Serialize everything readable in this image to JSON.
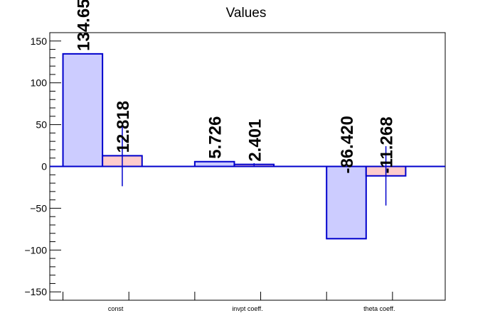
{
  "chart_data": {
    "type": "bar",
    "title": "Values",
    "xlabel": "",
    "ylabel": "",
    "categories": [
      "const",
      "invpt coeff.",
      "theta coeff."
    ],
    "ylim": [
      -160,
      160
    ],
    "yticks": [
      -150,
      -100,
      -50,
      0,
      50,
      100,
      150
    ],
    "ytick_labels": [
      "−150",
      "−100",
      "−50",
      "0",
      "50",
      "100",
      "150"
    ],
    "grid": false,
    "legend": "none",
    "series": [
      {
        "values": [
          134.65,
          5.726,
          -86.42
        ],
        "labels": [
          "134.65",
          "5.726",
          "-86.420"
        ],
        "fill": "#ccccff",
        "stroke": "#0000cc"
      },
      {
        "values": [
          12.818,
          2.401,
          -11.268
        ],
        "labels": [
          "12.818",
          "2.401",
          "-11.268"
        ],
        "errors": [
          36.5,
          1.5,
          35.5
        ],
        "fill": "#ffcccc",
        "stroke": "#0000cc"
      }
    ]
  }
}
